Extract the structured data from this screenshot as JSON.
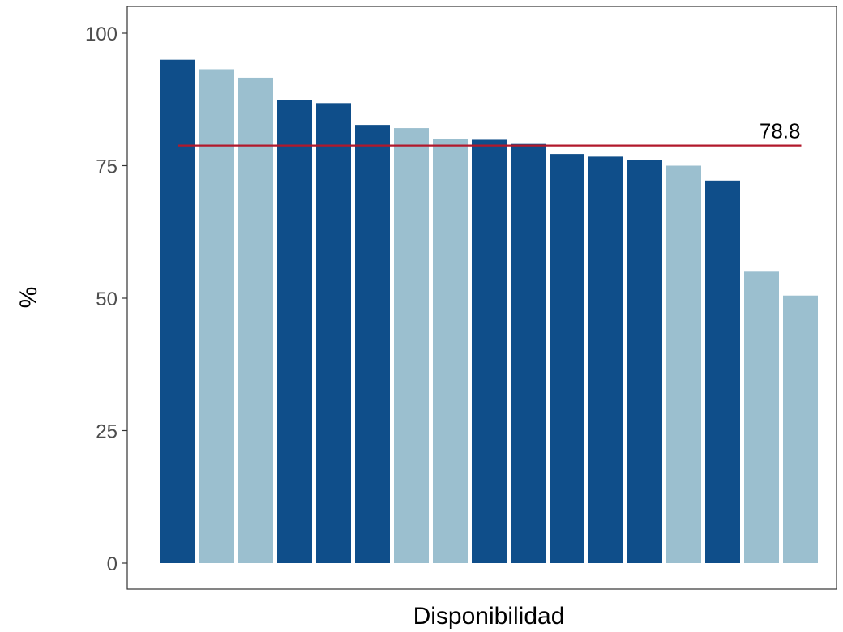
{
  "chart_data": {
    "type": "bar",
    "xlabel": "Disponibilidad",
    "ylabel": "%",
    "ylim": [
      0,
      100
    ],
    "yticks": [
      0,
      25,
      50,
      75,
      100
    ],
    "grid": false,
    "values": [
      95,
      93.2,
      91.6,
      87.4,
      86.8,
      82.7,
      82.1,
      80,
      79.9,
      79.1,
      77.2,
      76.7,
      76.1,
      75,
      72.2,
      55,
      50.5
    ],
    "bar_colors": [
      "#0f4e8a",
      "#9bbfcf",
      "#9bbfcf",
      "#0f4e8a",
      "#0f4e8a",
      "#0f4e8a",
      "#9bbfcf",
      "#9bbfcf",
      "#0f4e8a",
      "#0f4e8a",
      "#0f4e8a",
      "#0f4e8a",
      "#0f4e8a",
      "#9bbfcf",
      "#0f4e8a",
      "#9bbfcf",
      "#9bbfcf"
    ],
    "reference_line": {
      "value": 78.8,
      "label": "78.8",
      "color": "#b2182b"
    }
  }
}
